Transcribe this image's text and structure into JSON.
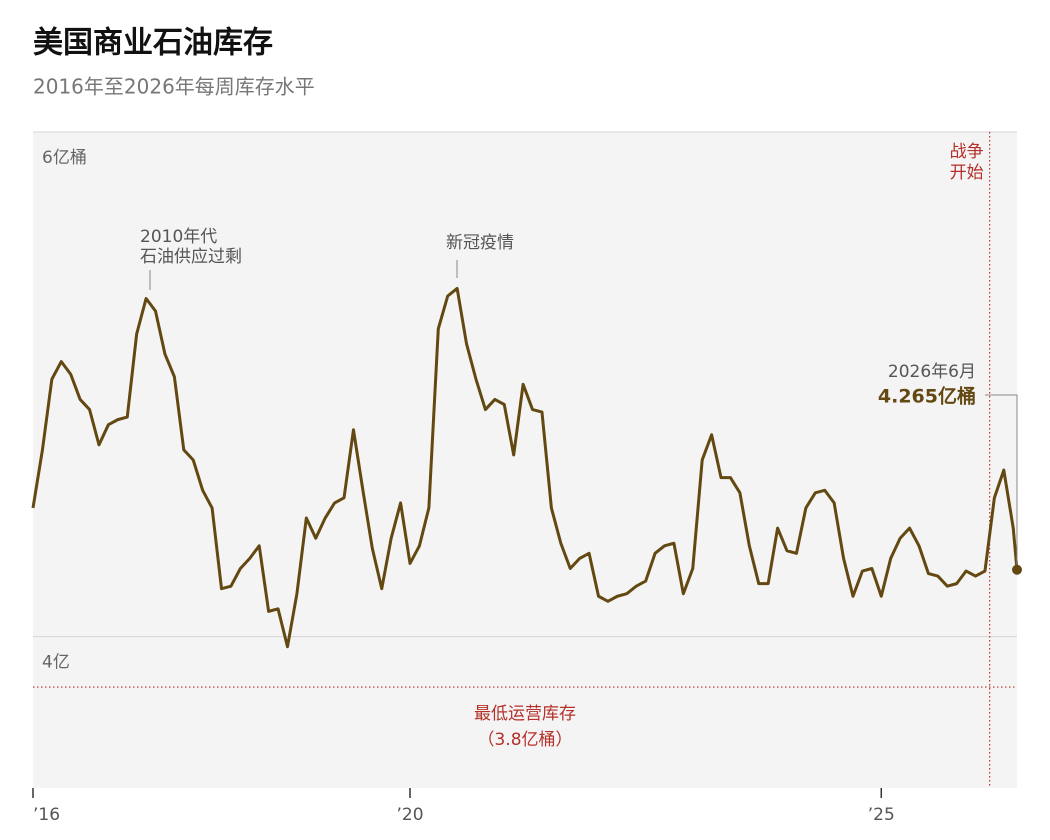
{
  "chart_data": {
    "type": "line",
    "title": "美国商业石油库存",
    "subtitle": "2016年至2026年每周库存水平",
    "x": [
      2016.0,
      2016.1,
      2016.2,
      2016.3,
      2016.4,
      2016.5,
      2016.6,
      2016.7,
      2016.8,
      2016.9,
      2017.0,
      2017.1,
      2017.2,
      2017.3,
      2017.4,
      2017.5,
      2017.6,
      2017.7,
      2017.8,
      2017.9,
      2018.0,
      2018.1,
      2018.2,
      2018.3,
      2018.4,
      2018.5,
      2018.6,
      2018.7,
      2018.8,
      2018.9,
      2019.0,
      2019.1,
      2019.2,
      2019.3,
      2019.4,
      2019.5,
      2019.6,
      2019.7,
      2019.8,
      2019.9,
      2020.0,
      2020.1,
      2020.2,
      2020.3,
      2020.4,
      2020.5,
      2020.6,
      2020.7,
      2020.8,
      2020.9,
      2021.0,
      2021.1,
      2021.2,
      2021.3,
      2021.4,
      2021.5,
      2021.6,
      2021.7,
      2021.8,
      2021.9,
      2022.0,
      2022.1,
      2022.2,
      2022.3,
      2022.4,
      2022.5,
      2022.6,
      2022.7,
      2022.8,
      2022.9,
      2023.0,
      2023.1,
      2023.2,
      2023.3,
      2023.4,
      2023.5,
      2023.6,
      2023.7,
      2023.8,
      2023.9,
      2024.0,
      2024.1,
      2024.2,
      2024.3,
      2024.4,
      2024.5,
      2024.6,
      2024.7,
      2024.8,
      2024.9,
      2025.0,
      2025.1,
      2025.2,
      2025.3,
      2025.4,
      2025.5,
      2025.6,
      2025.7,
      2025.8,
      2025.9,
      2026.0,
      2026.1,
      2026.2,
      2026.3,
      2026.4,
      2026.44
    ],
    "series": [
      {
        "name": "商业石油库存",
        "color": "#634811",
        "values": [
          4.51,
          4.74,
          5.02,
          5.09,
          5.04,
          4.94,
          4.9,
          4.76,
          4.84,
          4.86,
          4.87,
          5.2,
          5.34,
          5.29,
          5.12,
          5.03,
          4.74,
          4.7,
          4.58,
          4.51,
          4.19,
          4.2,
          4.27,
          4.31,
          4.36,
          4.1,
          4.11,
          3.96,
          4.17,
          4.47,
          4.39,
          4.47,
          4.53,
          4.55,
          4.82,
          4.58,
          4.35,
          4.19,
          4.39,
          4.53,
          4.29,
          4.36,
          4.51,
          5.22,
          5.35,
          5.38,
          5.16,
          5.02,
          4.9,
          4.94,
          4.92,
          4.72,
          5.0,
          4.9,
          4.89,
          4.51,
          4.37,
          4.27,
          4.31,
          4.33,
          4.16,
          4.14,
          4.16,
          4.17,
          4.2,
          4.22,
          4.33,
          4.36,
          4.37,
          4.17,
          4.27,
          4.7,
          4.8,
          4.63,
          4.63,
          4.57,
          4.36,
          4.21,
          4.21,
          4.43,
          4.34,
          4.33,
          4.51,
          4.57,
          4.58,
          4.53,
          4.31,
          4.16,
          4.26,
          4.27,
          4.16,
          4.31,
          4.39,
          4.43,
          4.36,
          4.25,
          4.24,
          4.2,
          4.21,
          4.26,
          4.24,
          4.26,
          4.55,
          4.66,
          4.43,
          4.265
        ]
      }
    ],
    "xlim": [
      2016,
      2026.44
    ],
    "xticks": [
      {
        "value": 2016,
        "label": "’16"
      },
      {
        "value": 2020,
        "label": "’20"
      },
      {
        "value": 2025,
        "label": "’25"
      }
    ],
    "ylim": [
      3.4,
      6
    ],
    "yticks": [
      {
        "value": 4,
        "label": "4亿"
      },
      {
        "value": 6,
        "label": "6亿桶"
      }
    ],
    "grid": true,
    "reference_line": {
      "value": 3.8,
      "label": [
        "最低运营库存",
        "（3.8亿桶）"
      ],
      "color": "#b5302a"
    },
    "event_line": {
      "x": 2026.15,
      "label": [
        "战争",
        "开始"
      ],
      "color": "#b5302a"
    },
    "annotations": [
      {
        "label": [
          "2010年代",
          "石油供应过剩"
        ]
      },
      {
        "label": [
          "新冠疫情"
        ]
      }
    ],
    "end_label": [
      "2026年6月",
      "4.265亿桶"
    ]
  }
}
